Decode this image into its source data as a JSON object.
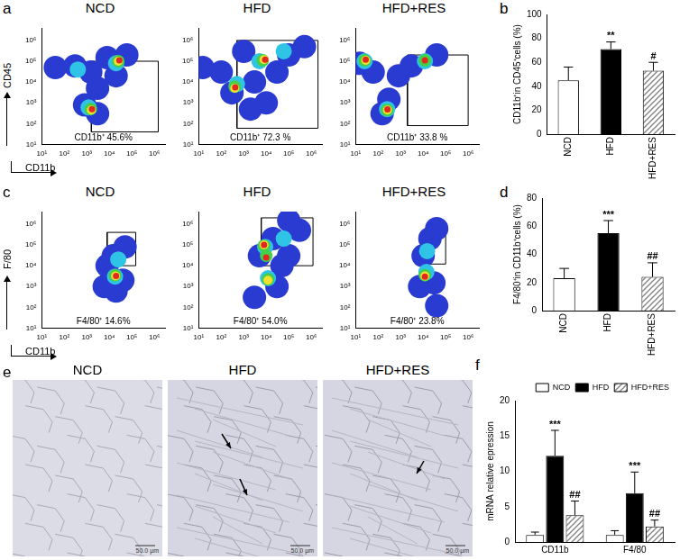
{
  "chart_data": [
    {
      "type": "scatter",
      "panel": "a",
      "title": "NCD",
      "x_label": "CD11b",
      "y_label": "CD45",
      "log": true,
      "grid": false,
      "x": [
        40,
        300,
        1500,
        8000,
        60000,
        800,
        3000,
        20000,
        3000,
        20000,
        1200,
        400,
        25000,
        1500,
        25000,
        1600,
        28000,
        1700
      ],
      "y": [
        50000,
        60000,
        30000,
        150000,
        200000,
        800,
        300,
        20000,
        5000,
        80000,
        600,
        40000,
        100000,
        500,
        100000,
        450,
        110000,
        500
      ],
      "colors": [
        "#2a3bd1",
        "#2a3bd1",
        "#2a3bd1",
        "#2a3bd1",
        "#2a3bd1",
        "#2a3bd1",
        "#2a3bd1",
        "#2a3bd1",
        "#2a3bd1",
        "#2fc4e6",
        "#2fc4e6",
        "#2fc4e6",
        "#43cf4a",
        "#43cf4a",
        "#f0e030",
        "#f0e030",
        "#e02a1f",
        "#e02a1f"
      ],
      "gate": {
        "x": [
          1600,
          1500000
        ],
        "y": [
          40,
          100000
        ]
      },
      "gate_label": "CD11b⁺ 45.6%",
      "xlim": [
        10,
        3000000
      ],
      "ylim": [
        10,
        4000000
      ],
      "xticks": [
        {
          "value": 10,
          "label": "10¹"
        },
        {
          "value": 100,
          "label": "10²"
        },
        {
          "value": 1000,
          "label": "10³"
        },
        {
          "value": 10000,
          "label": "10⁴"
        },
        {
          "value": 100000,
          "label": "10⁵"
        },
        {
          "value": 1000000,
          "label": "10⁶"
        }
      ],
      "yticks": [
        {
          "value": 10,
          "label": "10¹"
        },
        {
          "value": 100,
          "label": "10²"
        },
        {
          "value": 1000,
          "label": "10³"
        },
        {
          "value": 10000,
          "label": "10⁴"
        },
        {
          "value": 100000,
          "label": "10⁵"
        },
        {
          "value": 1000000,
          "label": "10⁶"
        }
      ]
    },
    {
      "type": "scatter",
      "title": "HFD",
      "log": true,
      "grid": false,
      "x": [
        15,
        100,
        300,
        2000,
        10000,
        100000,
        500000,
        30000,
        1000,
        3000,
        5000,
        500,
        60000,
        7000,
        400,
        8000,
        400,
        9000,
        420
      ],
      "y": [
        50000,
        30000,
        3000,
        500,
        1000,
        200000,
        500000,
        30000,
        300000,
        10000,
        100000,
        8000,
        300000,
        110000,
        6000,
        120000,
        5000,
        120000,
        5500
      ],
      "colors": [
        "#2a3bd1",
        "#2a3bd1",
        "#2a3bd1",
        "#2a3bd1",
        "#2a3bd1",
        "#2a3bd1",
        "#2a3bd1",
        "#2a3bd1",
        "#2a3bd1",
        "#2a3bd1",
        "#2fc4e6",
        "#2fc4e6",
        "#2fc4e6",
        "#43cf4a",
        "#43cf4a",
        "#f0e030",
        "#f0e030",
        "#e02a1f",
        "#e02a1f"
      ],
      "gate": {
        "x": [
          500,
          2000000
        ],
        "y": [
          60,
          1000000
        ]
      },
      "gate_label": "CD11b⁺ 72.3 %",
      "xlim": [
        10,
        3000000
      ],
      "ylim": [
        10,
        4000000
      ],
      "xticks": [
        {
          "value": 10,
          "label": "10¹"
        },
        {
          "value": 100,
          "label": "10²"
        },
        {
          "value": 1000,
          "label": "10³"
        },
        {
          "value": 10000,
          "label": "10⁴"
        },
        {
          "value": 100000,
          "label": "10⁵"
        },
        {
          "value": 1000000,
          "label": "10⁶"
        }
      ],
      "yticks": [
        {
          "value": 10,
          "label": "10¹"
        },
        {
          "value": 100,
          "label": "10²"
        },
        {
          "value": 1000,
          "label": "10³"
        },
        {
          "value": 10000,
          "label": "10⁴"
        },
        {
          "value": 100000,
          "label": "10⁵"
        },
        {
          "value": 1000000,
          "label": "10⁶"
        }
      ]
    },
    {
      "type": "scatter",
      "title": "HFD+RES",
      "log": true,
      "grid": false,
      "x": [
        15,
        60,
        300,
        150,
        3000,
        40000,
        800,
        25,
        250,
        12000,
        25,
        250,
        12000,
        28,
        260,
        28,
        260,
        12000
      ],
      "y": [
        80000,
        30000,
        1500,
        300,
        60000,
        200000,
        20000,
        100000,
        500,
        100000,
        110000,
        450,
        110000,
        110000,
        450,
        120000,
        480,
        110000
      ],
      "colors": [
        "#2a3bd1",
        "#2a3bd1",
        "#2a3bd1",
        "#2a3bd1",
        "#2a3bd1",
        "#2a3bd1",
        "#2a3bd1",
        "#2fc4e6",
        "#2fc4e6",
        "#2fc4e6",
        "#43cf4a",
        "#43cf4a",
        "#43cf4a",
        "#f0e030",
        "#f0e030",
        "#e02a1f",
        "#e02a1f",
        "#e02a1f"
      ],
      "gate": {
        "x": [
          2000,
          1000000
        ],
        "y": [
          80,
          200000
        ]
      },
      "gate_label": "CD11b⁺ 33.8 %",
      "xlim": [
        10,
        3000000
      ],
      "ylim": [
        10,
        4000000
      ],
      "xticks": [
        {
          "value": 10,
          "label": "10¹"
        },
        {
          "value": 100,
          "label": "10²"
        },
        {
          "value": 1000,
          "label": "10³"
        },
        {
          "value": 10000,
          "label": "10⁴"
        },
        {
          "value": 100000,
          "label": "10⁵"
        },
        {
          "value": 1000000,
          "label": "10⁶"
        }
      ],
      "yticks": [
        {
          "value": 10,
          "label": "10¹"
        },
        {
          "value": 100,
          "label": "10²"
        },
        {
          "value": 1000,
          "label": "10³"
        },
        {
          "value": 10000,
          "label": "10⁴"
        },
        {
          "value": 100000,
          "label": "10⁵"
        },
        {
          "value": 1000000,
          "label": "10⁶"
        }
      ]
    },
    {
      "type": "scatter",
      "panel": "c",
      "title": "NCD",
      "x_label": "CD11b",
      "y_label": "F/80",
      "log": true,
      "grid": false,
      "x": [
        6000,
        40000,
        15000,
        50000,
        8000,
        20000,
        18000,
        25000,
        18000,
        19000,
        20000
      ],
      "y": [
        1000,
        2000,
        30000,
        80000,
        10000,
        600,
        3000,
        20000,
        3500,
        3200,
        3200
      ],
      "colors": [
        "#2a3bd1",
        "#2a3bd1",
        "#2a3bd1",
        "#2a3bd1",
        "#2a3bd1",
        "#2a3bd1",
        "#2fc4e6",
        "#2fc4e6",
        "#43cf4a",
        "#f0e030",
        "#e02a1f"
      ],
      "gate": {
        "x": [
          8000,
          150000
        ],
        "y": [
          10000,
          400000
        ]
      },
      "gate_label": "F4/80⁺ 14.6%",
      "xlim": [
        10,
        3000000
      ],
      "ylim": [
        10,
        4000000
      ],
      "xticks": [
        {
          "value": 10,
          "label": "10¹"
        },
        {
          "value": 100,
          "label": "10²"
        },
        {
          "value": 1000,
          "label": "10³"
        },
        {
          "value": 10000,
          "label": "10⁴"
        },
        {
          "value": 100000,
          "label": "10⁵"
        },
        {
          "value": 1000000,
          "label": "10⁶"
        }
      ],
      "yticks": [
        {
          "value": 10,
          "label": "10¹"
        },
        {
          "value": 100,
          "label": "10²"
        },
        {
          "value": 1000,
          "label": "10³"
        },
        {
          "value": 10000,
          "label": "10⁴"
        },
        {
          "value": 100000,
          "label": "10⁵"
        },
        {
          "value": 1000000,
          "label": "10⁶"
        }
      ]
    },
    {
      "type": "scatter",
      "title": "HFD",
      "log": true,
      "grid": false,
      "x": [
        3000,
        30000,
        100000,
        300000,
        100000,
        5000,
        20000,
        50000,
        9000,
        12000,
        60000,
        8000,
        12000,
        10000,
        8000,
        12000,
        8000,
        10000
      ],
      "y": [
        300,
        1000,
        30000,
        500000,
        1500000,
        30000,
        200000,
        10000,
        80000,
        2500,
        200000,
        90000,
        2200,
        30000,
        100000,
        2000,
        100000,
        25000
      ],
      "colors": [
        "#2a3bd1",
        "#2a3bd1",
        "#2a3bd1",
        "#2a3bd1",
        "#2a3bd1",
        "#2a3bd1",
        "#2a3bd1",
        "#2a3bd1",
        "#2fc4e6",
        "#2fc4e6",
        "#2fc4e6",
        "#43cf4a",
        "#43cf4a",
        "#43cf4a",
        "#f0e030",
        "#f0e030",
        "#e02a1f",
        "#e02a1f"
      ],
      "gate": {
        "x": [
          6000,
          1200000
        ],
        "y": [
          10000,
          2000000
        ]
      },
      "gate_label": "F4/80⁺ 54.0%",
      "xlim": [
        10,
        3000000
      ],
      "ylim": [
        10,
        4000000
      ],
      "xticks": [
        {
          "value": 10,
          "label": "10¹"
        },
        {
          "value": 100,
          "label": "10²"
        },
        {
          "value": 1000,
          "label": "10³"
        },
        {
          "value": 10000,
          "label": "10⁴"
        },
        {
          "value": 100000,
          "label": "10⁵"
        },
        {
          "value": 1000000,
          "label": "10⁶"
        }
      ],
      "yticks": [
        {
          "value": 10,
          "label": "10¹"
        },
        {
          "value": 100,
          "label": "10²"
        },
        {
          "value": 1000,
          "label": "10³"
        },
        {
          "value": 10000,
          "label": "10⁴"
        },
        {
          "value": 100000,
          "label": "10⁵"
        },
        {
          "value": 1000000,
          "label": "10⁶"
        }
      ]
    },
    {
      "type": "scatter",
      "title": "HFD+RES",
      "log": true,
      "grid": false,
      "x": [
        7000,
        30000,
        10000,
        20000,
        40000,
        40000,
        14000,
        15000,
        12000,
        12000,
        12000
      ],
      "y": [
        1000,
        1500,
        30000,
        200000,
        600000,
        120,
        5000,
        50000,
        3500,
        3200,
        3000
      ],
      "colors": [
        "#2a3bd1",
        "#2a3bd1",
        "#2a3bd1",
        "#2a3bd1",
        "#2a3bd1",
        "#2a3bd1",
        "#2fc4e6",
        "#2fc4e6",
        "#43cf4a",
        "#f0e030",
        "#e02a1f"
      ],
      "gate": {
        "x": [
          8000,
          100000
        ],
        "y": [
          12000,
          300000
        ]
      },
      "gate_label": "F4/80⁺ 23.8%",
      "xlim": [
        10,
        3000000
      ],
      "ylim": [
        10,
        4000000
      ],
      "xticks": [
        {
          "value": 10,
          "label": "10¹"
        },
        {
          "value": 100,
          "label": "10²"
        },
        {
          "value": 1000,
          "label": "10³"
        },
        {
          "value": 10000,
          "label": "10⁴"
        },
        {
          "value": 100000,
          "label": "10⁵"
        },
        {
          "value": 1000000,
          "label": "10⁶"
        }
      ],
      "yticks": [
        {
          "value": 10,
          "label": "10¹"
        },
        {
          "value": 100,
          "label": "10²"
        },
        {
          "value": 1000,
          "label": "10³"
        },
        {
          "value": 10000,
          "label": "10⁴"
        },
        {
          "value": 100000,
          "label": "10⁵"
        },
        {
          "value": 1000000,
          "label": "10⁶"
        }
      ]
    },
    {
      "type": "bar",
      "panel": "b",
      "y_label": "CD11b⁺in CD45⁺cells (%)",
      "grid": false,
      "categories": [
        "NCD",
        "HFD",
        "HFD+RES"
      ],
      "values": [
        45,
        71,
        53
      ],
      "errors": [
        11,
        6,
        7
      ],
      "annotations": [
        null,
        "**",
        "#"
      ],
      "colors": [
        "#ffffff",
        "#000000",
        "#808080"
      ],
      "ylim": [
        0,
        100
      ],
      "yticks": [
        0,
        20,
        40,
        60,
        80,
        100
      ]
    },
    {
      "type": "bar",
      "panel": "d",
      "y_label": "F4/80⁺in CD11b⁺cells (%)",
      "grid": false,
      "categories": [
        "NCD",
        "HFD",
        "HFD+RES"
      ],
      "values": [
        23,
        55,
        24
      ],
      "errors": [
        7,
        9,
        10
      ],
      "annotations": [
        null,
        "***",
        "##"
      ],
      "colors": [
        "#ffffff",
        "#000000",
        "#808080"
      ],
      "ylim": [
        0,
        80
      ],
      "yticks": [
        0,
        20,
        40,
        60,
        80
      ]
    },
    {
      "type": "bar",
      "panel": "f",
      "y_label": "mRNA relative epression",
      "grid": false,
      "legend": "upper right",
      "categories": [
        "CD11b",
        "F4/80"
      ],
      "series": [
        {
          "name": "NCD",
          "color": "#ffffff",
          "values": [
            1.0,
            1.0
          ],
          "errors": [
            0.4,
            0.6
          ],
          "annotations": [
            null,
            null
          ]
        },
        {
          "name": "HFD",
          "color": "#000000",
          "values": [
            12.2,
            6.9
          ],
          "errors": [
            3.6,
            3.0
          ],
          "annotations": [
            "***",
            "***"
          ]
        },
        {
          "name": "HFD+RES",
          "color": "#808080",
          "values": [
            3.8,
            2.2
          ],
          "errors": [
            2.0,
            0.9
          ],
          "annotations": [
            "##",
            "##"
          ]
        }
      ],
      "ylim": [
        0,
        20
      ],
      "yticks": [
        0,
        5,
        10,
        15,
        20
      ]
    }
  ],
  "histology": {
    "panel": "e",
    "titles": [
      "NCD",
      "HFD",
      "HFD+RES"
    ],
    "scale_bar": "50.0 μm"
  }
}
